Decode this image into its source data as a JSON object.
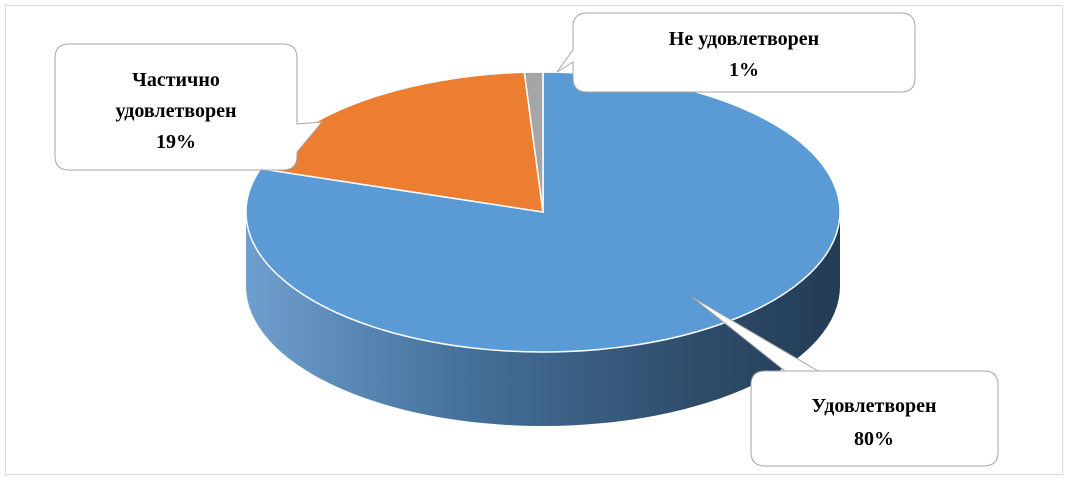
{
  "chart_data": {
    "type": "pie",
    "title": "",
    "style": "3d",
    "legend": "none",
    "data_labels": "callouts",
    "slices": [
      {
        "name": "Удовлетворен",
        "value": 80,
        "label": "80%",
        "color": "#5b9bd5"
      },
      {
        "name": "Частично удовлетворен",
        "value": 19,
        "label": "19%",
        "color": "#ed7d31"
      },
      {
        "name": "Не удовлетворен",
        "value": 1,
        "label": "1%",
        "color": "#a5a5a5"
      }
    ]
  },
  "callouts": {
    "satisfied": {
      "line1": "Удовлетворен",
      "line2": "80%"
    },
    "partial": {
      "line1": "Частично",
      "line2": "удовлетворен",
      "line3": "19%"
    },
    "not_satisfied": {
      "line1": "Не удовлетворен",
      "line2": "1%"
    }
  }
}
